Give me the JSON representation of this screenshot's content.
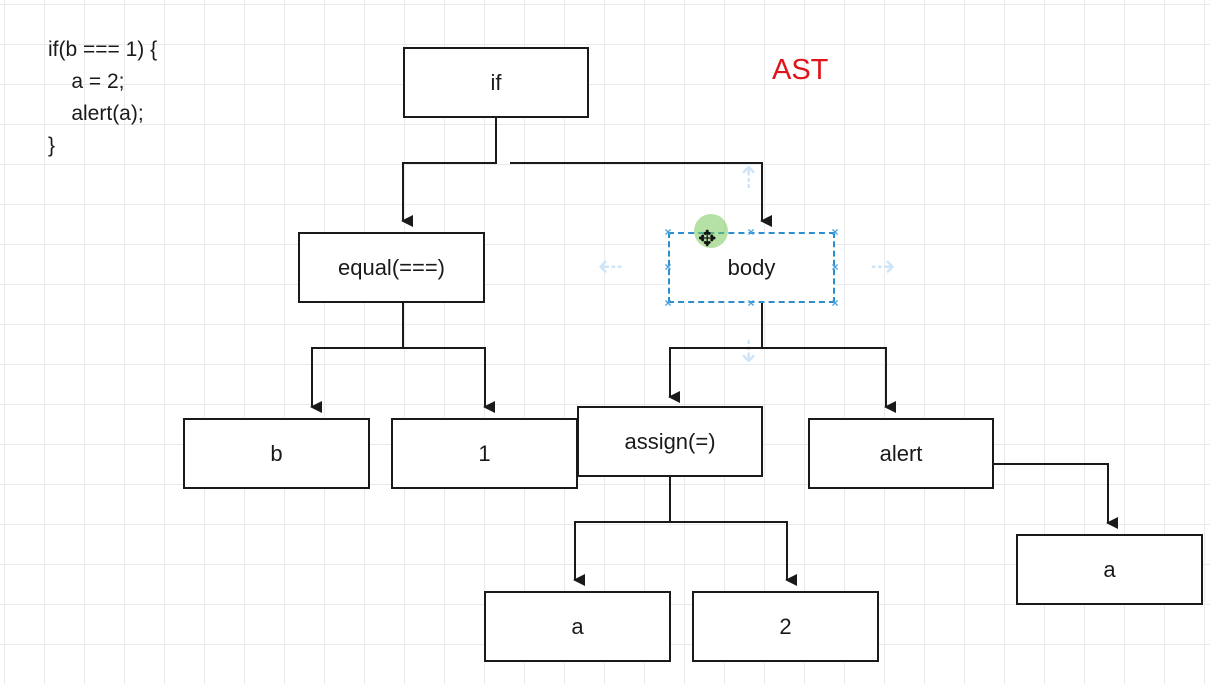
{
  "code": {
    "lines": [
      "if(b === 1) {",
      "    a = 2;",
      "    alert(a);",
      "}"
    ]
  },
  "title": "AST",
  "colors": {
    "title": "#e0141b",
    "stroke": "#1a1a1a",
    "selection": "#2a8fd0",
    "grid": "#eaeaea"
  },
  "nodes": {
    "if": "if",
    "equal": "equal(===)",
    "body": "body",
    "b": "b",
    "one": "1",
    "assign": "assign(=)",
    "alert": "alert",
    "alert_arg": "a",
    "assign_a": "a",
    "assign_two": "2"
  },
  "selected_node": "body"
}
